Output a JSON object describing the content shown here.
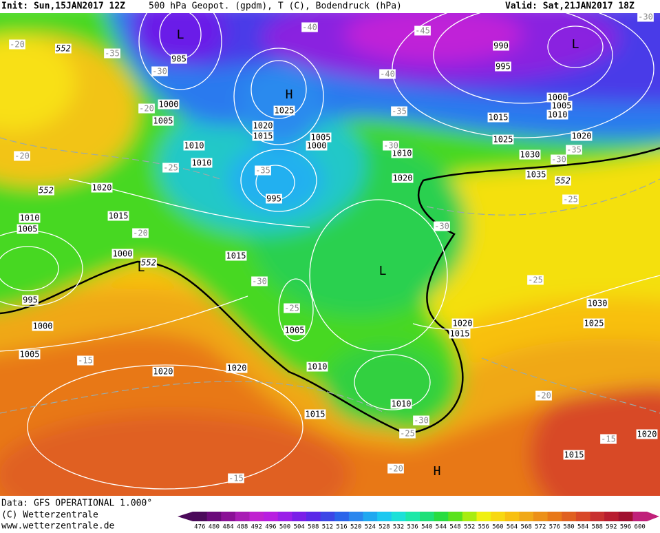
{
  "header": {
    "init": "Init: Sun,15JAN2017 12Z",
    "title": "500 hPa Geopot. (gpdm), T (C), Bodendruck (hPa)",
    "valid": "Valid: Sat,21JAN2017 18Z"
  },
  "footer": {
    "data": "Data: GFS OPERATIONAL 1.000°",
    "copyright": "(C) Wetterzentrale",
    "url": "www.wetterzentrale.de"
  },
  "map": {
    "pressure_labels": [
      "985",
      "1000",
      "1005",
      "1010",
      "1010",
      "1025",
      "1020",
      "1015",
      "1005",
      "1000",
      "995",
      "1020",
      "1015",
      "1010",
      "1005",
      "1000",
      "1015",
      "995",
      "1000",
      "1005",
      "1020",
      "1020",
      "1005",
      "1010",
      "1015",
      "1010",
      "1010",
      "1020",
      "1015",
      "990",
      "995",
      "1000",
      "1005",
      "1010",
      "1025",
      "1020",
      "1030",
      "1035",
      "1020",
      "1015",
      "1030",
      "1025",
      "1020",
      "1015"
    ],
    "temperature_labels": [
      "-40",
      "-45",
      "-40",
      "-35",
      "-30",
      "-35",
      "-30",
      "-25",
      "-30",
      "-25",
      "-30",
      "-25",
      "-15",
      "-20",
      "-30",
      "-25",
      "-20",
      "-15",
      "-15",
      "-20",
      "-35",
      "-30",
      "-20",
      "-25",
      "-35",
      "-20",
      "-20",
      "-30"
    ],
    "centers": [
      "L",
      "H",
      "L",
      "L",
      "L",
      "H"
    ],
    "height_labels": [
      "552",
      "552",
      "552",
      "552"
    ]
  },
  "colorbar": {
    "values": [
      476,
      480,
      484,
      488,
      492,
      496,
      500,
      504,
      508,
      512,
      516,
      520,
      524,
      528,
      532,
      536,
      540,
      544,
      548,
      552,
      556,
      560,
      564,
      568,
      572,
      576,
      580,
      584,
      588,
      592,
      596,
      600
    ],
    "colors": [
      "#4b0a5a",
      "#6a0a7a",
      "#8a1096",
      "#a81cb4",
      "#c022d0",
      "#b81ee0",
      "#9a1ee8",
      "#7a1ee8",
      "#5a28e8",
      "#3c46e6",
      "#2a64ea",
      "#2a86ee",
      "#20a8f0",
      "#1cc8f0",
      "#1ce0d8",
      "#1ce8a8",
      "#1ee078",
      "#28dc40",
      "#5ae21c",
      "#a8ec10",
      "#f0f010",
      "#f8d810",
      "#f8c010",
      "#f0a818",
      "#ec9018",
      "#e87818",
      "#e06020",
      "#d84828",
      "#c83030",
      "#b81c30",
      "#a01030",
      "#c0207a"
    ]
  }
}
